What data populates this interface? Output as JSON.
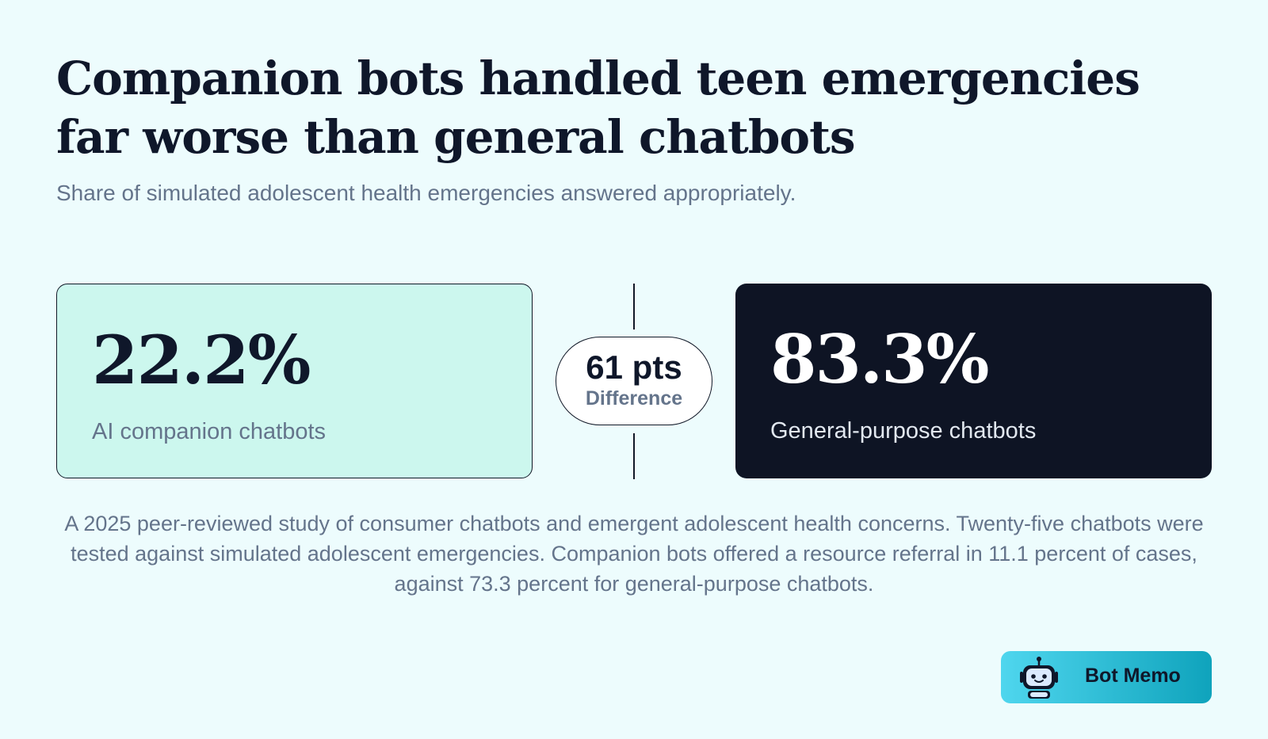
{
  "header": {
    "title": "Companion bots handled teen emergencies far worse than general chatbots",
    "subtitle": "Share of simulated adolescent health emergencies answered appropriately."
  },
  "chart_data": {
    "type": "table",
    "title": "Companion bots handled teen emergencies far worse than general chatbots",
    "subtitle": "Share of simulated adolescent health emergencies answered appropriately.",
    "stats": [
      {
        "value": 22.2,
        "display": "22.2%",
        "label": "AI companion chatbots",
        "color": "#ccf7ee"
      },
      {
        "value": 83.3,
        "display": "83.3%",
        "label": "General-purpose chatbots",
        "color": "#0e1424"
      }
    ],
    "difference": {
      "value": 61,
      "display": "61 pts",
      "label": "Difference"
    }
  },
  "footnote": "A 2025 peer-reviewed study of consumer chatbots and emergent adolescent health concerns. Twenty-five chatbots were tested against simulated adolescent emergencies. Companion bots offered a resource referral in 11.1 percent of cases, against 73.3 percent for general-purpose chatbots.",
  "brand": {
    "name": "Bot Memo",
    "icon": "robot-icon"
  }
}
